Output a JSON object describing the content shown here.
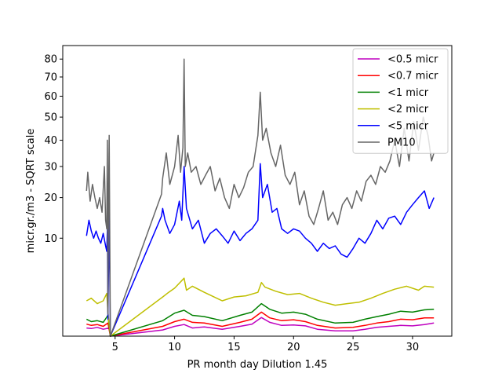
{
  "chart_data": {
    "type": "line",
    "xlabel": "PR month day  Dilution 1.45",
    "ylabel": "micr.gr./m3 - SQRT scale",
    "y_scale": "sqrt",
    "xlim": [
      0.6,
      33.3
    ],
    "ylim": [
      0,
      88
    ],
    "xticks": [
      5,
      10,
      15,
      20,
      25,
      30
    ],
    "yticks": [
      10,
      20,
      30,
      40,
      50,
      60,
      70,
      80
    ],
    "grid": false,
    "legend_position": "top-right",
    "series": [
      {
        "name": "<0.5 micr",
        "color": "#bf00bf",
        "x": [
          2.6,
          3.0,
          3.5,
          4.0,
          4.5,
          4.6,
          9.0,
          10.0,
          10.8,
          11.5,
          12.5,
          14.0,
          15.5,
          16.5,
          17.3,
          18.0,
          19.0,
          20.0,
          21.0,
          22.0,
          23.5,
          25.0,
          26.0,
          27.0,
          28.0,
          29.0,
          30.0,
          31.0,
          31.8
        ],
        "y": [
          0.07,
          0.06,
          0.08,
          0.05,
          0.07,
          0.0,
          0.04,
          0.1,
          0.14,
          0.07,
          0.09,
          0.05,
          0.1,
          0.15,
          0.36,
          0.2,
          0.12,
          0.13,
          0.11,
          0.05,
          0.03,
          0.03,
          0.05,
          0.08,
          0.1,
          0.12,
          0.11,
          0.14,
          0.18
        ]
      },
      {
        "name": "<0.7 micr",
        "color": "#ff0000",
        "x": [
          2.6,
          3.0,
          3.5,
          4.0,
          4.4,
          4.6,
          9.0,
          10.0,
          10.8,
          11.5,
          12.5,
          14.0,
          15.5,
          16.5,
          17.3,
          18.0,
          19.0,
          20.0,
          21.0,
          22.0,
          23.5,
          25.0,
          26.0,
          27.0,
          28.0,
          29.0,
          30.0,
          31.0,
          31.8
        ],
        "y": [
          0.15,
          0.12,
          0.14,
          0.1,
          0.18,
          0.0,
          0.1,
          0.22,
          0.3,
          0.2,
          0.18,
          0.1,
          0.2,
          0.3,
          0.6,
          0.35,
          0.25,
          0.28,
          0.22,
          0.12,
          0.07,
          0.08,
          0.12,
          0.18,
          0.22,
          0.3,
          0.28,
          0.35,
          0.35
        ]
      },
      {
        "name": "<1 micr",
        "color": "#008000",
        "x": [
          2.6,
          3.0,
          3.5,
          4.0,
          4.4,
          4.6,
          9.0,
          10.0,
          10.8,
          11.5,
          12.5,
          14.0,
          15.5,
          16.5,
          17.3,
          18.0,
          19.0,
          20.0,
          21.0,
          22.0,
          23.5,
          25.0,
          26.0,
          27.0,
          28.0,
          29.0,
          30.0,
          31.0,
          31.8
        ],
        "y": [
          0.3,
          0.22,
          0.25,
          0.2,
          0.45,
          0.0,
          0.25,
          0.55,
          0.7,
          0.45,
          0.4,
          0.25,
          0.45,
          0.6,
          1.1,
          0.75,
          0.55,
          0.6,
          0.5,
          0.3,
          0.18,
          0.2,
          0.3,
          0.4,
          0.5,
          0.65,
          0.6,
          0.72,
          0.75
        ]
      },
      {
        "name": "<2 micr",
        "color": "#bfbf00",
        "x": [
          2.6,
          3.0,
          3.5,
          4.0,
          4.3,
          4.4,
          4.6,
          9.0,
          9.5,
          10.0,
          10.8,
          11.0,
          11.5,
          12.5,
          14.0,
          15.0,
          16.0,
          17.0,
          17.3,
          17.6,
          18.5,
          19.5,
          20.5,
          21.5,
          22.5,
          23.5,
          24.5,
          25.5,
          26.5,
          27.5,
          28.5,
          29.5,
          30.5,
          31.0,
          31.8
        ],
        "y": [
          1.3,
          1.5,
          1.1,
          1.3,
          1.9,
          0.6,
          0.0,
          1.6,
          2.0,
          2.4,
          3.5,
          2.2,
          2.6,
          2.0,
          1.3,
          1.6,
          1.7,
          2.0,
          3.0,
          2.5,
          2.1,
          1.8,
          1.9,
          1.5,
          1.2,
          1.0,
          1.1,
          1.2,
          1.5,
          1.9,
          2.3,
          2.6,
          2.2,
          2.6,
          2.5
        ]
      },
      {
        "name": "<5 micr",
        "color": "#0000ff",
        "x": [
          2.6,
          2.8,
          3.0,
          3.2,
          3.4,
          3.6,
          3.8,
          4.0,
          4.2,
          4.3,
          4.35,
          4.4,
          4.5,
          4.6,
          8.9,
          9.0,
          9.2,
          9.6,
          10.0,
          10.4,
          10.6,
          10.8,
          11.0,
          11.5,
          12.0,
          12.5,
          13.0,
          13.5,
          14.0,
          14.5,
          15.0,
          15.5,
          16.0,
          16.5,
          17.0,
          17.2,
          17.4,
          17.8,
          18.2,
          18.6,
          19.0,
          19.5,
          20.0,
          20.5,
          21.0,
          21.5,
          22.0,
          22.5,
          23.0,
          23.5,
          24.0,
          24.5,
          25.0,
          25.5,
          26.0,
          26.5,
          27.0,
          27.5,
          28.0,
          28.5,
          29.0,
          29.5,
          30.0,
          30.5,
          31.0,
          31.4,
          31.8
        ],
        "y": [
          10.5,
          14.0,
          11.5,
          10.0,
          11.5,
          10.0,
          9.0,
          11.0,
          8.5,
          7.5,
          12.0,
          0.3,
          16.0,
          0.0,
          15.0,
          17.0,
          14.0,
          11.0,
          13.0,
          19.0,
          14.0,
          30.0,
          17.0,
          12.0,
          14.0,
          9.0,
          11.0,
          12.0,
          10.5,
          9.0,
          11.5,
          9.5,
          11.0,
          12.0,
          14.0,
          31.0,
          20.0,
          24.0,
          16.0,
          17.0,
          12.0,
          11.0,
          12.0,
          11.5,
          10.0,
          9.0,
          7.5,
          9.0,
          8.0,
          8.5,
          7.0,
          6.5,
          8.0,
          10.0,
          9.0,
          11.0,
          14.0,
          12.0,
          14.5,
          15.0,
          13.0,
          16.0,
          18.0,
          20.0,
          22.0,
          17.0,
          20.0
        ]
      },
      {
        "name": "PM10",
        "color": "#666666",
        "x": [
          2.6,
          2.7,
          2.9,
          3.1,
          3.3,
          3.5,
          3.7,
          3.9,
          4.1,
          4.2,
          4.3,
          4.35,
          4.4,
          4.45,
          4.5,
          4.6,
          8.9,
          9.0,
          9.3,
          9.6,
          10.0,
          10.3,
          10.5,
          10.7,
          10.8,
          10.9,
          11.1,
          11.4,
          11.8,
          12.2,
          12.6,
          13.0,
          13.4,
          13.8,
          14.2,
          14.6,
          15.0,
          15.4,
          15.8,
          16.2,
          16.6,
          17.0,
          17.2,
          17.4,
          17.7,
          18.1,
          18.5,
          18.9,
          19.3,
          19.7,
          20.1,
          20.5,
          20.9,
          21.3,
          21.7,
          22.1,
          22.5,
          22.9,
          23.3,
          23.7,
          24.1,
          24.5,
          24.9,
          25.3,
          25.7,
          26.1,
          26.5,
          26.9,
          27.3,
          27.7,
          28.1,
          28.5,
          28.9,
          29.3,
          29.7,
          30.1,
          30.5,
          30.9,
          31.3,
          31.6,
          31.8
        ],
        "y": [
          22.0,
          28.0,
          19.0,
          24.0,
          20.0,
          17.0,
          20.0,
          16.0,
          30.0,
          14.0,
          12.0,
          40.0,
          0.5,
          20.0,
          42.0,
          0.0,
          21.0,
          26.0,
          35.0,
          24.0,
          30.0,
          42.0,
          28.0,
          37.0,
          80.0,
          30.0,
          35.0,
          28.0,
          30.0,
          24.0,
          27.0,
          30.0,
          22.0,
          26.0,
          20.0,
          17.0,
          24.0,
          20.0,
          23.0,
          28.0,
          30.0,
          42.0,
          62.0,
          40.0,
          45.0,
          35.0,
          30.0,
          38.0,
          27.0,
          24.0,
          28.0,
          18.0,
          22.0,
          15.0,
          13.0,
          17.0,
          22.0,
          14.0,
          16.0,
          13.0,
          18.0,
          20.0,
          17.0,
          22.0,
          19.0,
          25.0,
          27.0,
          24.0,
          30.0,
          28.0,
          32.0,
          40.0,
          30.0,
          45.0,
          32.0,
          48.0,
          36.0,
          50.0,
          42.0,
          32.0,
          35.0
        ]
      }
    ]
  }
}
